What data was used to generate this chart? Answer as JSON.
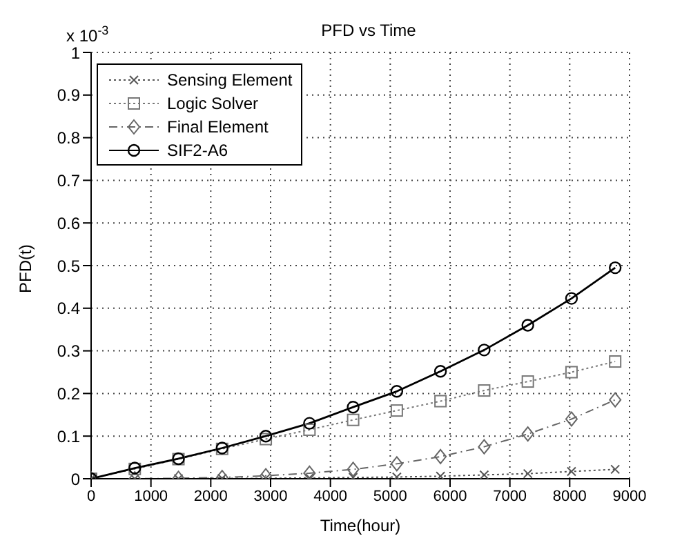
{
  "chart_data": {
    "type": "line",
    "title": "PFD vs Time",
    "xlabel": "Time(hour)",
    "ylabel": "PFD(t)",
    "annotations": [
      "x 10$^{-3}$"
    ],
    "x": [
      0,
      730,
      1460,
      2190,
      2920,
      3650,
      4380,
      5110,
      5840,
      6570,
      7300,
      8030,
      8760
    ],
    "series": [
      {
        "name": "Sensing Element",
        "color": "#555555",
        "marker": "cross",
        "line_style": "dotted",
        "values": [
          0,
          0,
          0,
          0.001,
          0.001,
          0.002,
          0.003,
          0.004,
          0.006,
          0.009,
          0.012,
          0.017,
          0.022
        ]
      },
      {
        "name": "Logic Solver",
        "color": "#777777",
        "marker": "square",
        "line_style": "dotted",
        "values": [
          0,
          0.023,
          0.046,
          0.07,
          0.093,
          0.115,
          0.138,
          0.16,
          0.182,
          0.207,
          0.228,
          0.25,
          0.275
        ]
      },
      {
        "name": "Final Element",
        "color": "#666666",
        "marker": "diamond",
        "line_style": "dashed",
        "values": [
          0,
          0,
          0.001,
          0.003,
          0.007,
          0.013,
          0.022,
          0.035,
          0.052,
          0.075,
          0.105,
          0.14,
          0.185
        ]
      },
      {
        "name": "SIF2-A6",
        "color": "#000000",
        "marker": "circle",
        "line_style": "solid",
        "values": [
          0,
          0.025,
          0.047,
          0.072,
          0.1,
          0.13,
          0.168,
          0.205,
          0.252,
          0.302,
          0.36,
          0.423,
          0.495
        ]
      }
    ],
    "xlim": [
      0,
      9000
    ],
    "xticks": [
      0,
      1000,
      2000,
      3000,
      4000,
      5000,
      6000,
      7000,
      8000,
      9000
    ],
    "ylim": [
      0,
      1
    ],
    "yticks": [
      0,
      0.1,
      0.2,
      0.3,
      0.4,
      0.5,
      0.6,
      0.7,
      0.8,
      0.9,
      1
    ],
    "grid": true,
    "legend": "top left"
  }
}
